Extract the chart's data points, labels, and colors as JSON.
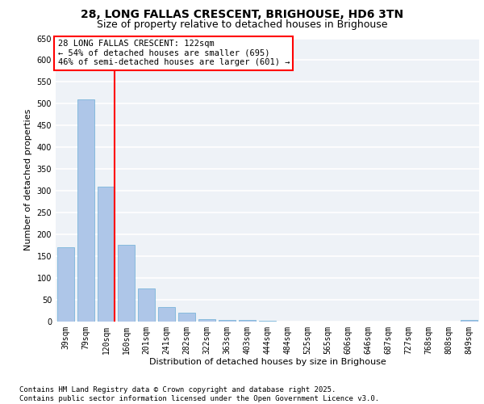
{
  "title_line1": "28, LONG FALLAS CRESCENT, BRIGHOUSE, HD6 3TN",
  "title_line2": "Size of property relative to detached houses in Brighouse",
  "xlabel": "Distribution of detached houses by size in Brighouse",
  "ylabel": "Number of detached properties",
  "categories": [
    "39sqm",
    "79sqm",
    "120sqm",
    "160sqm",
    "201sqm",
    "241sqm",
    "282sqm",
    "322sqm",
    "363sqm",
    "403sqm",
    "444sqm",
    "484sqm",
    "525sqm",
    "565sqm",
    "606sqm",
    "646sqm",
    "687sqm",
    "727sqm",
    "768sqm",
    "808sqm",
    "849sqm"
  ],
  "values": [
    170,
    510,
    310,
    175,
    75,
    33,
    20,
    5,
    2,
    2,
    1,
    0,
    0,
    0,
    0,
    0,
    0,
    0,
    0,
    0,
    3
  ],
  "bar_color": "#aec6e8",
  "bar_edge_color": "#6aaed6",
  "red_line_index": 2,
  "annotation_text": "28 LONG FALLAS CRESCENT: 122sqm\n← 54% of detached houses are smaller (695)\n46% of semi-detached houses are larger (601) →",
  "annotation_box_color": "white",
  "annotation_box_edge_color": "red",
  "ylim": [
    0,
    650
  ],
  "yticks": [
    0,
    50,
    100,
    150,
    200,
    250,
    300,
    350,
    400,
    450,
    500,
    550,
    600,
    650
  ],
  "background_color": "#eef2f7",
  "grid_color": "white",
  "footer_text": "Contains HM Land Registry data © Crown copyright and database right 2025.\nContains public sector information licensed under the Open Government Licence v3.0.",
  "title_fontsize": 10,
  "subtitle_fontsize": 9,
  "axis_label_fontsize": 8,
  "tick_fontsize": 7,
  "footer_fontsize": 6.5,
  "annotation_fontsize": 7.5
}
